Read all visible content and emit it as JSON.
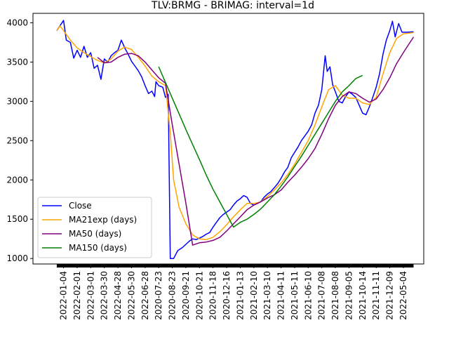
{
  "chart_data": {
    "type": "line",
    "title": "TLV:BRMG - BRIMAG: interval=1d",
    "xlabel": "",
    "ylabel": "",
    "ylim": [
      930,
      4120
    ],
    "y_ticks": [
      1000,
      1500,
      2000,
      2500,
      3000,
      3500,
      4000
    ],
    "x_tick_labels": [
      "2022-01-04",
      "2022-02-01",
      "2022-03-01",
      "2022-03-30",
      "2022-04-28",
      "2022-05-30",
      "2022-06-28",
      "2020-07-23",
      "2020-08-23",
      "2020-09-21",
      "2020-10-21",
      "2020-11-18",
      "2020-12-16",
      "2021-01-13",
      "2021-02-10",
      "2021-03-10",
      "2021-04-11",
      "2021-05-11",
      "2021-06-10",
      "2021-07-08",
      "2021-08-08",
      "2021-09-05",
      "2021-10-14",
      "2021-11-11",
      "2021-12-09",
      "2022-05-04"
    ],
    "legend": {
      "location": "lower-left"
    },
    "grid": false,
    "series": [
      {
        "name": "Close",
        "color": "#0000ff",
        "points": [
          [
            0,
            3900
          ],
          [
            1,
            4030
          ],
          [
            1.4,
            3780
          ],
          [
            2,
            3750
          ],
          [
            2.5,
            3550
          ],
          [
            3,
            3650
          ],
          [
            3.5,
            3560
          ],
          [
            4,
            3700
          ],
          [
            4.5,
            3560
          ],
          [
            5,
            3620
          ],
          [
            5.5,
            3420
          ],
          [
            6,
            3460
          ],
          [
            6.5,
            3280
          ],
          [
            7,
            3540
          ],
          [
            7.5,
            3500
          ],
          [
            8,
            3580
          ],
          [
            8.5,
            3620
          ],
          [
            9,
            3650
          ],
          [
            9.5,
            3780
          ],
          [
            10,
            3680
          ],
          [
            10.5,
            3600
          ],
          [
            11,
            3510
          ],
          [
            11.5,
            3450
          ],
          [
            12,
            3390
          ],
          [
            12.5,
            3310
          ],
          [
            13,
            3200
          ],
          [
            13.5,
            3100
          ],
          [
            14,
            3130
          ],
          [
            14.4,
            3060
          ],
          [
            14.6,
            3250
          ],
          [
            15,
            3200
          ],
          [
            15.6,
            3180
          ],
          [
            16,
            3050
          ],
          [
            16.4,
            3090
          ],
          [
            16.7,
            1000
          ],
          [
            17.2,
            1000
          ],
          [
            17.8,
            1100
          ],
          [
            18.5,
            1140
          ],
          [
            19,
            1180
          ],
          [
            19.5,
            1220
          ],
          [
            20,
            1250
          ],
          [
            20.5,
            1240
          ],
          [
            21,
            1260
          ],
          [
            21.5,
            1280
          ],
          [
            22,
            1310
          ],
          [
            22.5,
            1330
          ],
          [
            23,
            1400
          ],
          [
            23.5,
            1460
          ],
          [
            24,
            1520
          ],
          [
            24.5,
            1560
          ],
          [
            25,
            1590
          ],
          [
            25.5,
            1620
          ],
          [
            26,
            1680
          ],
          [
            26.5,
            1730
          ],
          [
            27,
            1760
          ],
          [
            27.5,
            1800
          ],
          [
            28,
            1780
          ],
          [
            28.5,
            1700
          ],
          [
            29,
            1680
          ],
          [
            29.5,
            1700
          ],
          [
            30,
            1720
          ],
          [
            30.5,
            1780
          ],
          [
            31,
            1820
          ],
          [
            31.5,
            1850
          ],
          [
            32,
            1900
          ],
          [
            32.5,
            1950
          ],
          [
            33,
            2020
          ],
          [
            33.5,
            2100
          ],
          [
            34,
            2160
          ],
          [
            34.5,
            2280
          ],
          [
            35,
            2350
          ],
          [
            35.5,
            2420
          ],
          [
            36,
            2500
          ],
          [
            36.5,
            2560
          ],
          [
            37,
            2620
          ],
          [
            37.5,
            2700
          ],
          [
            38,
            2850
          ],
          [
            38.5,
            2950
          ],
          [
            39,
            3150
          ],
          [
            39.5,
            3580
          ],
          [
            39.8,
            3380
          ],
          [
            40.2,
            3440
          ],
          [
            40.6,
            3210
          ],
          [
            41,
            3120
          ],
          [
            41.5,
            3000
          ],
          [
            42,
            2980
          ],
          [
            42.5,
            3060
          ],
          [
            43,
            3120
          ],
          [
            43.5,
            3090
          ],
          [
            44,
            3050
          ],
          [
            44.5,
            2950
          ],
          [
            45,
            2850
          ],
          [
            45.5,
            2830
          ],
          [
            46,
            2930
          ],
          [
            46.5,
            3050
          ],
          [
            47,
            3180
          ],
          [
            47.5,
            3350
          ],
          [
            48,
            3600
          ],
          [
            48.5,
            3780
          ],
          [
            49,
            3900
          ],
          [
            49.4,
            4020
          ],
          [
            49.8,
            3820
          ],
          [
            50.3,
            3990
          ],
          [
            50.8,
            3880
          ],
          [
            51.5,
            3880
          ],
          [
            52.5,
            3885
          ]
        ]
      },
      {
        "name": "MA21exp (days)",
        "color": "#ffa500",
        "points": [
          [
            0,
            3900
          ],
          [
            0.5,
            3960
          ],
          [
            1,
            3900
          ],
          [
            2,
            3780
          ],
          [
            3,
            3680
          ],
          [
            4,
            3620
          ],
          [
            5,
            3570
          ],
          [
            6,
            3520
          ],
          [
            7,
            3490
          ],
          [
            8,
            3540
          ],
          [
            9,
            3640
          ],
          [
            10,
            3690
          ],
          [
            11,
            3660
          ],
          [
            12,
            3560
          ],
          [
            13,
            3450
          ],
          [
            14,
            3320
          ],
          [
            15,
            3250
          ],
          [
            16,
            3200
          ],
          [
            16.7,
            2600
          ],
          [
            17.2,
            2000
          ],
          [
            18,
            1650
          ],
          [
            19,
            1440
          ],
          [
            20,
            1300
          ],
          [
            21,
            1250
          ],
          [
            22,
            1240
          ],
          [
            23,
            1270
          ],
          [
            24,
            1340
          ],
          [
            25,
            1430
          ],
          [
            26,
            1530
          ],
          [
            27,
            1620
          ],
          [
            28,
            1700
          ],
          [
            29,
            1700
          ],
          [
            30,
            1720
          ],
          [
            31,
            1790
          ],
          [
            32,
            1870
          ],
          [
            33,
            1960
          ],
          [
            34,
            2070
          ],
          [
            35,
            2200
          ],
          [
            36,
            2350
          ],
          [
            37,
            2500
          ],
          [
            38,
            2700
          ],
          [
            39,
            2930
          ],
          [
            40,
            3150
          ],
          [
            41,
            3200
          ],
          [
            42,
            3080
          ],
          [
            43,
            3040
          ],
          [
            44,
            3040
          ],
          [
            45,
            2980
          ],
          [
            46,
            2960
          ],
          [
            47,
            3050
          ],
          [
            48,
            3350
          ],
          [
            49,
            3620
          ],
          [
            50,
            3800
          ],
          [
            51,
            3860
          ],
          [
            52.5,
            3875
          ]
        ]
      },
      {
        "name": "MA50 (days)",
        "color": "#800080",
        "points": [
          [
            6,
            3560
          ],
          [
            7,
            3490
          ],
          [
            8,
            3500
          ],
          [
            9,
            3560
          ],
          [
            10,
            3600
          ],
          [
            11,
            3610
          ],
          [
            12,
            3580
          ],
          [
            13,
            3500
          ],
          [
            14,
            3400
          ],
          [
            15,
            3300
          ],
          [
            16,
            3230
          ],
          [
            17,
            2700
          ],
          [
            18,
            2200
          ],
          [
            19,
            1700
          ],
          [
            20,
            1170
          ],
          [
            21,
            1200
          ],
          [
            22,
            1210
          ],
          [
            23,
            1230
          ],
          [
            24,
            1270
          ],
          [
            25,
            1350
          ],
          [
            26,
            1440
          ],
          [
            27,
            1530
          ],
          [
            28,
            1620
          ],
          [
            29,
            1680
          ],
          [
            30,
            1720
          ],
          [
            31,
            1770
          ],
          [
            32,
            1810
          ],
          [
            33,
            1870
          ],
          [
            34,
            1970
          ],
          [
            35,
            2060
          ],
          [
            36,
            2160
          ],
          [
            37,
            2270
          ],
          [
            38,
            2400
          ],
          [
            39,
            2580
          ],
          [
            40,
            2780
          ],
          [
            41,
            2950
          ],
          [
            42,
            3060
          ],
          [
            43,
            3120
          ],
          [
            44,
            3100
          ],
          [
            45,
            3040
          ],
          [
            46,
            2990
          ],
          [
            47,
            3030
          ],
          [
            48,
            3150
          ],
          [
            49,
            3300
          ],
          [
            50,
            3480
          ],
          [
            51,
            3620
          ],
          [
            52.5,
            3820
          ]
        ]
      },
      {
        "name": "MA150 (days)",
        "color": "#008000",
        "points": [
          [
            15,
            3440
          ],
          [
            16,
            3240
          ],
          [
            17,
            3040
          ],
          [
            18,
            2840
          ],
          [
            19,
            2640
          ],
          [
            20,
            2450
          ],
          [
            21,
            2260
          ],
          [
            22,
            2060
          ],
          [
            23,
            1880
          ],
          [
            24,
            1720
          ],
          [
            25,
            1560
          ],
          [
            26,
            1400
          ],
          [
            27,
            1460
          ],
          [
            28,
            1500
          ],
          [
            29,
            1560
          ],
          [
            30,
            1630
          ],
          [
            31,
            1720
          ],
          [
            32,
            1810
          ],
          [
            33,
            1920
          ],
          [
            34,
            2040
          ],
          [
            35,
            2170
          ],
          [
            36,
            2300
          ],
          [
            37,
            2440
          ],
          [
            38,
            2580
          ],
          [
            39,
            2720
          ],
          [
            40,
            2860
          ],
          [
            41,
            3000
          ],
          [
            42,
            3120
          ],
          [
            43,
            3200
          ],
          [
            44,
            3290
          ],
          [
            45,
            3330
          ]
        ]
      }
    ]
  }
}
